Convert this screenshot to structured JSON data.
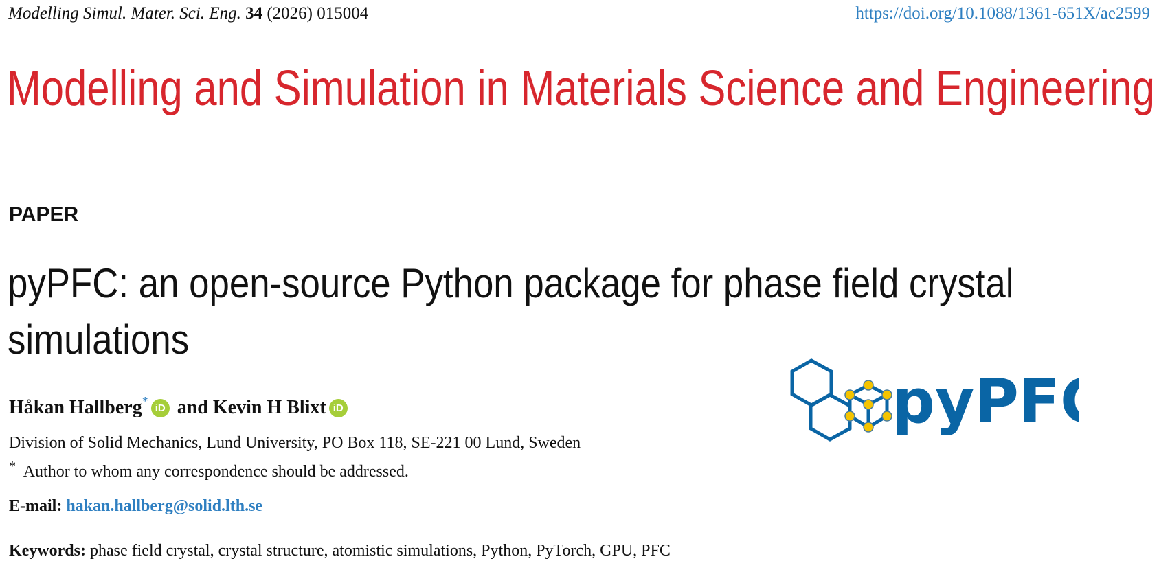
{
  "header": {
    "journal_abbrev": "Modelling Simul. Mater. Sci. Eng.",
    "volume": "34",
    "year_article": "(2026) 015004",
    "doi": "https://doi.org/10.1088/1361-651X/ae2599"
  },
  "journal_title": "Modelling and Simulation in Materials Science and Engineering",
  "article_type": "PAPER",
  "title_line1": "pyPFC: an open-source Python package for phase field crystal",
  "title_line2": "simulations",
  "authors": {
    "author1": "Håkan Hallberg",
    "author1_mark": "*",
    "connector": "and",
    "author2": "Kevin H Blixt",
    "orcid_label": "iD"
  },
  "affiliation": "Division of Solid Mechanics, Lund University, PO Box 118, SE-221 00 Lund, Sweden",
  "correspondence": {
    "mark": "*",
    "text": "Author to whom any correspondence should be addressed."
  },
  "email": {
    "label": "E-mail:",
    "address": "hakan.hallberg@solid.lth.se"
  },
  "keywords": {
    "label": "Keywords:",
    "text": "phase field crystal, crystal structure, atomistic simulations, Python, PyTorch, GPU, PFC"
  },
  "logo": {
    "text": "pyPFC",
    "colors": {
      "primary": "#0a65a5",
      "atom": "#f5c400"
    }
  },
  "colors": {
    "journal": "#d7262d",
    "link": "#2e7fc1",
    "orcid": "#a6ce39"
  }
}
